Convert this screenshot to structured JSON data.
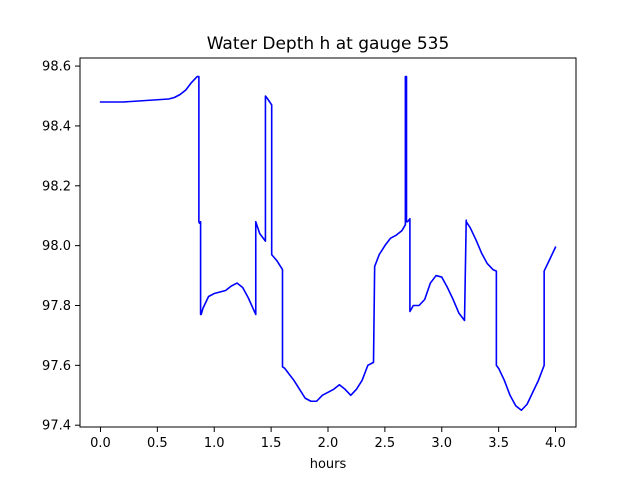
{
  "chart_data": {
    "type": "line",
    "title": "Water Depth h at gauge 535",
    "xlabel": "hours",
    "ylabel": "",
    "xlim": [
      -0.18,
      4.18
    ],
    "ylim": [
      97.394,
      98.627
    ],
    "xticks": [
      0.0,
      0.5,
      1.0,
      1.5,
      2.0,
      2.5,
      3.0,
      3.5,
      4.0
    ],
    "xtick_labels": [
      "0.0",
      "0.5",
      "1.0",
      "1.5",
      "2.0",
      "2.5",
      "3.0",
      "3.5",
      "4.0"
    ],
    "yticks": [
      97.4,
      97.6,
      97.8,
      98.0,
      98.2,
      98.4,
      98.6
    ],
    "ytick_labels": [
      "97.4",
      "97.6",
      "97.8",
      "98.0",
      "98.2",
      "98.4",
      "98.6"
    ],
    "grid": false,
    "series": [
      {
        "color": "#0000ff",
        "x": [
          0.0,
          0.2,
          0.4,
          0.6,
          0.65,
          0.7,
          0.75,
          0.8,
          0.85,
          0.865,
          0.865,
          0.87,
          0.88,
          0.88,
          0.885,
          0.9,
          0.95,
          1.0,
          1.05,
          1.1,
          1.15,
          1.2,
          1.25,
          1.3,
          1.365,
          1.365,
          1.4,
          1.45,
          1.45,
          1.47,
          1.505,
          1.505,
          1.55,
          1.6,
          1.6,
          1.62,
          1.65,
          1.7,
          1.8,
          1.85,
          1.9,
          1.95,
          2.0,
          2.05,
          2.1,
          2.15,
          2.2,
          2.25,
          2.3,
          2.35,
          2.4,
          2.41,
          2.41,
          2.45,
          2.5,
          2.55,
          2.6,
          2.65,
          2.68,
          2.68,
          2.69,
          2.69,
          2.7,
          2.72,
          2.72,
          2.75,
          2.8,
          2.85,
          2.9,
          2.95,
          3.0,
          3.05,
          3.1,
          3.15,
          3.2,
          3.215,
          3.215,
          3.25,
          3.3,
          3.35,
          3.4,
          3.45,
          3.48,
          3.48,
          3.5,
          3.55,
          3.6,
          3.65,
          3.7,
          3.75,
          3.8,
          3.85,
          3.9,
          3.9,
          3.95,
          4.0
        ],
        "values": [
          98.48,
          98.48,
          98.485,
          98.49,
          98.495,
          98.505,
          98.52,
          98.545,
          98.565,
          98.565,
          98.08,
          98.075,
          98.08,
          97.77,
          97.77,
          97.79,
          97.83,
          97.84,
          97.845,
          97.85,
          97.865,
          97.875,
          97.86,
          97.825,
          97.77,
          98.08,
          98.04,
          98.015,
          98.5,
          98.49,
          98.47,
          97.97,
          97.95,
          97.92,
          97.595,
          97.59,
          97.575,
          97.55,
          97.49,
          97.48,
          97.48,
          97.5,
          97.51,
          97.52,
          97.535,
          97.52,
          97.5,
          97.52,
          97.55,
          97.6,
          97.61,
          97.925,
          97.93,
          97.97,
          98.0,
          98.025,
          98.035,
          98.05,
          98.07,
          98.565,
          98.565,
          98.08,
          98.08,
          98.09,
          97.78,
          97.8,
          97.8,
          97.82,
          97.875,
          97.9,
          97.895,
          97.86,
          97.82,
          97.775,
          97.75,
          98.085,
          98.08,
          98.06,
          98.02,
          97.975,
          97.94,
          97.92,
          97.915,
          97.6,
          97.59,
          97.55,
          97.5,
          97.465,
          97.45,
          97.47,
          97.51,
          97.55,
          97.6,
          97.915,
          97.955,
          97.995
        ]
      }
    ]
  }
}
